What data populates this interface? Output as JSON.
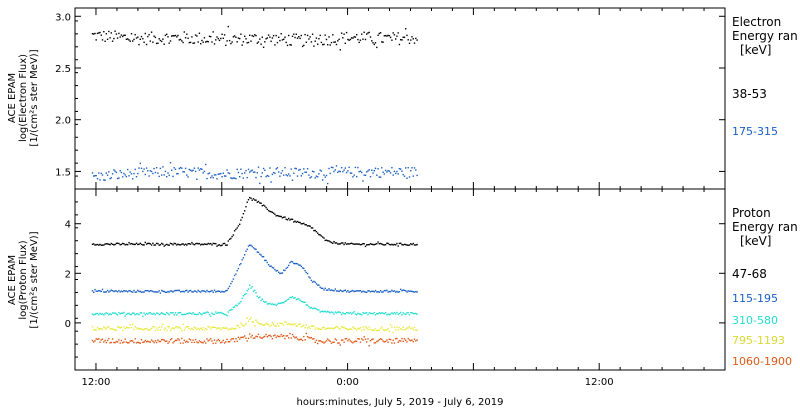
{
  "x_axis": {
    "label": "hours:minutes, July  5, 2019 - July  6, 2019",
    "ticks": [
      {
        "hour": 12,
        "label": "12:00"
      },
      {
        "hour": 24,
        "label": "0:00"
      },
      {
        "hour": 36,
        "label": "12:00"
      }
    ],
    "range_hours": [
      11,
      42
    ],
    "data_end_hour": 27.4
  },
  "chart_data": [
    {
      "type": "scatter",
      "panel": "electron",
      "ylabel_lines": [
        "ACE EPAM",
        "log(Electron Flux)",
        "[1/(cm²s ster MeV)]"
      ],
      "ylim": [
        1.33,
        3.08
      ],
      "yticks": [
        "1.5",
        "2.0",
        "2.5",
        "3.0"
      ],
      "legend_title_lines": [
        "Electron",
        "Energy ran",
        "[keV]"
      ],
      "series": [
        {
          "name": "38-53",
          "color": "#000000",
          "base": 2.78,
          "noise": 0.06,
          "points": [
            [
              11.8,
              2.82
            ],
            [
              14,
              2.79
            ],
            [
              16,
              2.8
            ],
            [
              18,
              2.78
            ],
            [
              20,
              2.79
            ],
            [
              22,
              2.77
            ],
            [
              24,
              2.8
            ],
            [
              26,
              2.79
            ],
            [
              27.3,
              2.8
            ]
          ]
        },
        {
          "name": "175-315",
          "color": "#1a5fc4",
          "base": 1.49,
          "noise": 0.05,
          "points": [
            [
              11.8,
              1.45
            ],
            [
              14,
              1.49
            ],
            [
              16,
              1.5
            ],
            [
              18,
              1.48
            ],
            [
              20,
              1.5
            ],
            [
              22,
              1.49
            ],
            [
              24,
              1.5
            ],
            [
              26,
              1.5
            ],
            [
              27.3,
              1.5
            ]
          ]
        }
      ]
    },
    {
      "type": "scatter",
      "panel": "proton",
      "ylabel_lines": [
        "ACE EPAM",
        "log(Proton Flux)",
        "[1/(cm²s ster MeV)]"
      ],
      "ylim": [
        -1.9,
        5.4
      ],
      "yticks": [
        "0",
        "2",
        "4"
      ],
      "legend_title_lines": [
        "Proton",
        "Energy ran",
        "[keV]"
      ],
      "series": [
        {
          "name": "47-68",
          "color": "#000000",
          "base": 3.2,
          "noise": 0.04,
          "points": [
            [
              11.8,
              3.2
            ],
            [
              18.2,
              3.2
            ],
            [
              18.8,
              4.0
            ],
            [
              19.3,
              5.1
            ],
            [
              19.7,
              4.9
            ],
            [
              20.5,
              4.4
            ],
            [
              21.5,
              4.1
            ],
            [
              22.2,
              3.9
            ],
            [
              22.6,
              3.6
            ],
            [
              23.0,
              3.3
            ],
            [
              24,
              3.2
            ],
            [
              27.3,
              3.2
            ]
          ]
        },
        {
          "name": "115-195",
          "color": "#1a5fc4",
          "base": 1.3,
          "noise": 0.04,
          "points": [
            [
              11.8,
              1.3
            ],
            [
              18.2,
              1.3
            ],
            [
              18.8,
              2.3
            ],
            [
              19.3,
              3.2
            ],
            [
              19.8,
              2.8
            ],
            [
              20.3,
              2.3
            ],
            [
              20.8,
              2.0
            ],
            [
              21.3,
              2.5
            ],
            [
              21.8,
              2.3
            ],
            [
              22.3,
              1.7
            ],
            [
              22.8,
              1.4
            ],
            [
              24,
              1.3
            ],
            [
              27.3,
              1.3
            ]
          ]
        },
        {
          "name": "310-580",
          "color": "#22dcd0",
          "base": 0.4,
          "noise": 0.05,
          "points": [
            [
              11.8,
              0.4
            ],
            [
              18.2,
              0.4
            ],
            [
              18.8,
              0.8
            ],
            [
              19.3,
              1.5
            ],
            [
              19.8,
              1.0
            ],
            [
              20.3,
              0.75
            ],
            [
              20.8,
              0.8
            ],
            [
              21.3,
              1.1
            ],
            [
              21.8,
              0.9
            ],
            [
              22.3,
              0.6
            ],
            [
              22.8,
              0.45
            ],
            [
              24,
              0.4
            ],
            [
              27.3,
              0.4
            ]
          ]
        },
        {
          "name": "795-1193",
          "color": "#e8e840",
          "base": -0.2,
          "noise": 0.08,
          "points": [
            [
              11.8,
              -0.2
            ],
            [
              18.5,
              -0.2
            ],
            [
              19.3,
              0.1
            ],
            [
              20.3,
              -0.05
            ],
            [
              21.3,
              0.0
            ],
            [
              22.5,
              -0.2
            ],
            [
              27.3,
              -0.2
            ]
          ]
        },
        {
          "name": "1060-1900",
          "color": "#e05818",
          "base": -0.7,
          "noise": 0.1,
          "points": [
            [
              11.8,
              -0.7
            ],
            [
              18.5,
              -0.7
            ],
            [
              19.3,
              -0.5
            ],
            [
              20.5,
              -0.55
            ],
            [
              21.3,
              -0.5
            ],
            [
              22.5,
              -0.7
            ],
            [
              27.3,
              -0.7
            ]
          ]
        }
      ]
    }
  ]
}
